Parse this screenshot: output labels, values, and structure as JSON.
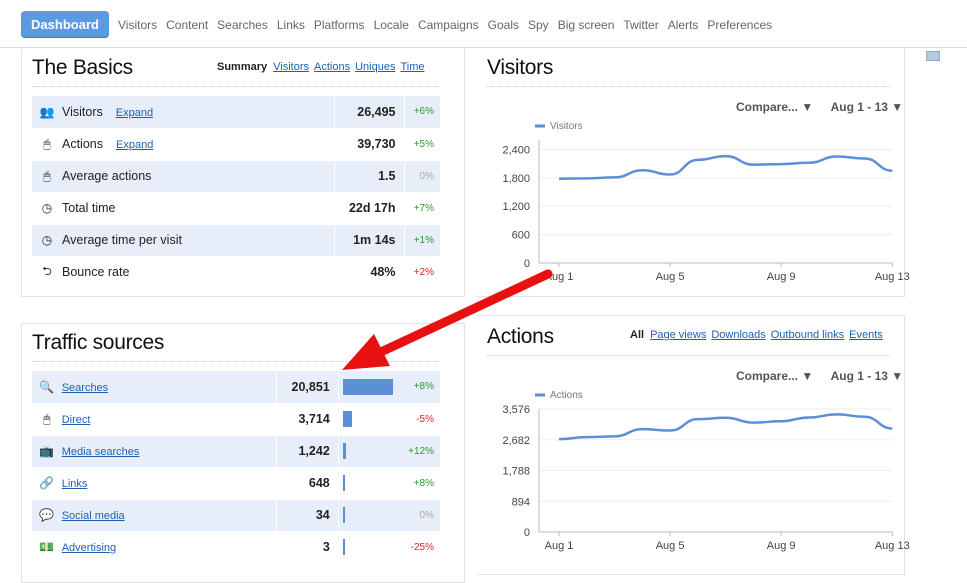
{
  "nav": {
    "dashboard": "Dashboard",
    "items": [
      "Visitors",
      "Content",
      "Searches",
      "Links",
      "Platforms",
      "Locale",
      "Campaigns",
      "Goals",
      "Spy",
      "Big screen",
      "Twitter",
      "Alerts",
      "Preferences"
    ]
  },
  "basics": {
    "title": "The Basics",
    "tabs": [
      "Summary",
      "Visitors",
      "Actions",
      "Uniques",
      "Time"
    ],
    "expand_label": "Expand",
    "rows": [
      {
        "icon": "visitors-icon",
        "glyph": "👥",
        "label": "Visitors",
        "expand": true,
        "value": "26,495",
        "change": "+6%",
        "dir": "up"
      },
      {
        "icon": "mouse-icon",
        "glyph": "🖱",
        "label": "Actions",
        "expand": true,
        "value": "39,730",
        "change": "+5%",
        "dir": "up"
      },
      {
        "icon": "mouse-icon",
        "glyph": "🖱",
        "label": "Average actions",
        "expand": false,
        "value": "1.5",
        "change": "0%",
        "dir": "z"
      },
      {
        "icon": "clock-icon",
        "glyph": "◷",
        "label": "Total time",
        "expand": false,
        "value": "22d 17h",
        "change": "+7%",
        "dir": "up"
      },
      {
        "icon": "clock-icon",
        "glyph": "◷",
        "label": "Average time per visit",
        "expand": false,
        "value": "1m 14s",
        "change": "+1%",
        "dir": "up"
      },
      {
        "icon": "bounce-icon",
        "glyph": "⮌",
        "label": "Bounce rate",
        "expand": false,
        "value": "48%",
        "change": "+2%",
        "dir": "dn"
      }
    ]
  },
  "traffic": {
    "title": "Traffic sources",
    "rows": [
      {
        "icon": "search-icon",
        "glyph": "🔍",
        "label": "Searches",
        "value": "20,851",
        "share": 1.0,
        "change": "+8%",
        "dir": "up"
      },
      {
        "icon": "mouse-icon",
        "glyph": "🖱",
        "label": "Direct",
        "value": "3,714",
        "share": 0.178,
        "change": "-5%",
        "dir": "dn"
      },
      {
        "icon": "tv-icon",
        "glyph": "📺",
        "label": "Media searches",
        "value": "1,242",
        "share": 0.06,
        "change": "+12%",
        "dir": "up"
      },
      {
        "icon": "link-icon",
        "glyph": "🔗",
        "label": "Links",
        "value": "648",
        "share": 0.031,
        "change": "+8%",
        "dir": "up"
      },
      {
        "icon": "social-icon",
        "glyph": "💬",
        "label": "Social media",
        "value": "34",
        "share": 0.002,
        "change": "0%",
        "dir": "z"
      },
      {
        "icon": "money-icon",
        "glyph": "💵",
        "label": "Advertising",
        "value": "3",
        "share": 0.0001,
        "change": "-25%",
        "dir": "dn"
      }
    ]
  },
  "visitors_panel": {
    "title": "Visitors",
    "compare": "Compare... ▼",
    "range": "Aug 1 - 13 ▼"
  },
  "actions_panel": {
    "title": "Actions",
    "filter_all": "All",
    "filters": [
      "Page views",
      "Downloads",
      "Outbound links",
      "Events"
    ],
    "compare": "Compare... ▼",
    "range": "Aug 1 - 13 ▼"
  },
  "colors": {
    "accent": "#5b9ae2",
    "line": "#5b8fd6",
    "up": "#2a9a2a",
    "down": "#dd2222",
    "arrow": "#e81010"
  },
  "chart_data": [
    {
      "type": "line",
      "series": [
        {
          "name": "Visitors",
          "values": [
            1780,
            1790,
            1810,
            1960,
            1870,
            2180,
            2260,
            2080,
            2090,
            2120,
            2250,
            2210,
            1950
          ]
        }
      ],
      "x": [
        "Aug 1",
        "Aug 2",
        "Aug 3",
        "Aug 4",
        "Aug 5",
        "Aug 6",
        "Aug 7",
        "Aug 8",
        "Aug 9",
        "Aug 10",
        "Aug 11",
        "Aug 12",
        "Aug 13"
      ],
      "xticks": [
        "Aug 1",
        "Aug 5",
        "Aug 9",
        "Aug 13"
      ],
      "yticks": [
        "0",
        "600",
        "1,200",
        "1,800",
        "2,400"
      ],
      "ylim": [
        0,
        2600
      ],
      "legend": "top-left"
    },
    {
      "type": "line",
      "series": [
        {
          "name": "Actions",
          "values": [
            2700,
            2760,
            2780,
            2990,
            2950,
            3280,
            3320,
            3180,
            3220,
            3330,
            3420,
            3350,
            3010
          ]
        }
      ],
      "x": [
        "Aug 1",
        "Aug 2",
        "Aug 3",
        "Aug 4",
        "Aug 5",
        "Aug 6",
        "Aug 7",
        "Aug 8",
        "Aug 9",
        "Aug 10",
        "Aug 11",
        "Aug 12",
        "Aug 13"
      ],
      "xticks": [
        "Aug 1",
        "Aug 5",
        "Aug 9",
        "Aug 13"
      ],
      "yticks": [
        "0",
        "894",
        "1,788",
        "2,682",
        "3,576"
      ],
      "ylim": [
        0,
        3576
      ],
      "legend": "top-left"
    }
  ]
}
